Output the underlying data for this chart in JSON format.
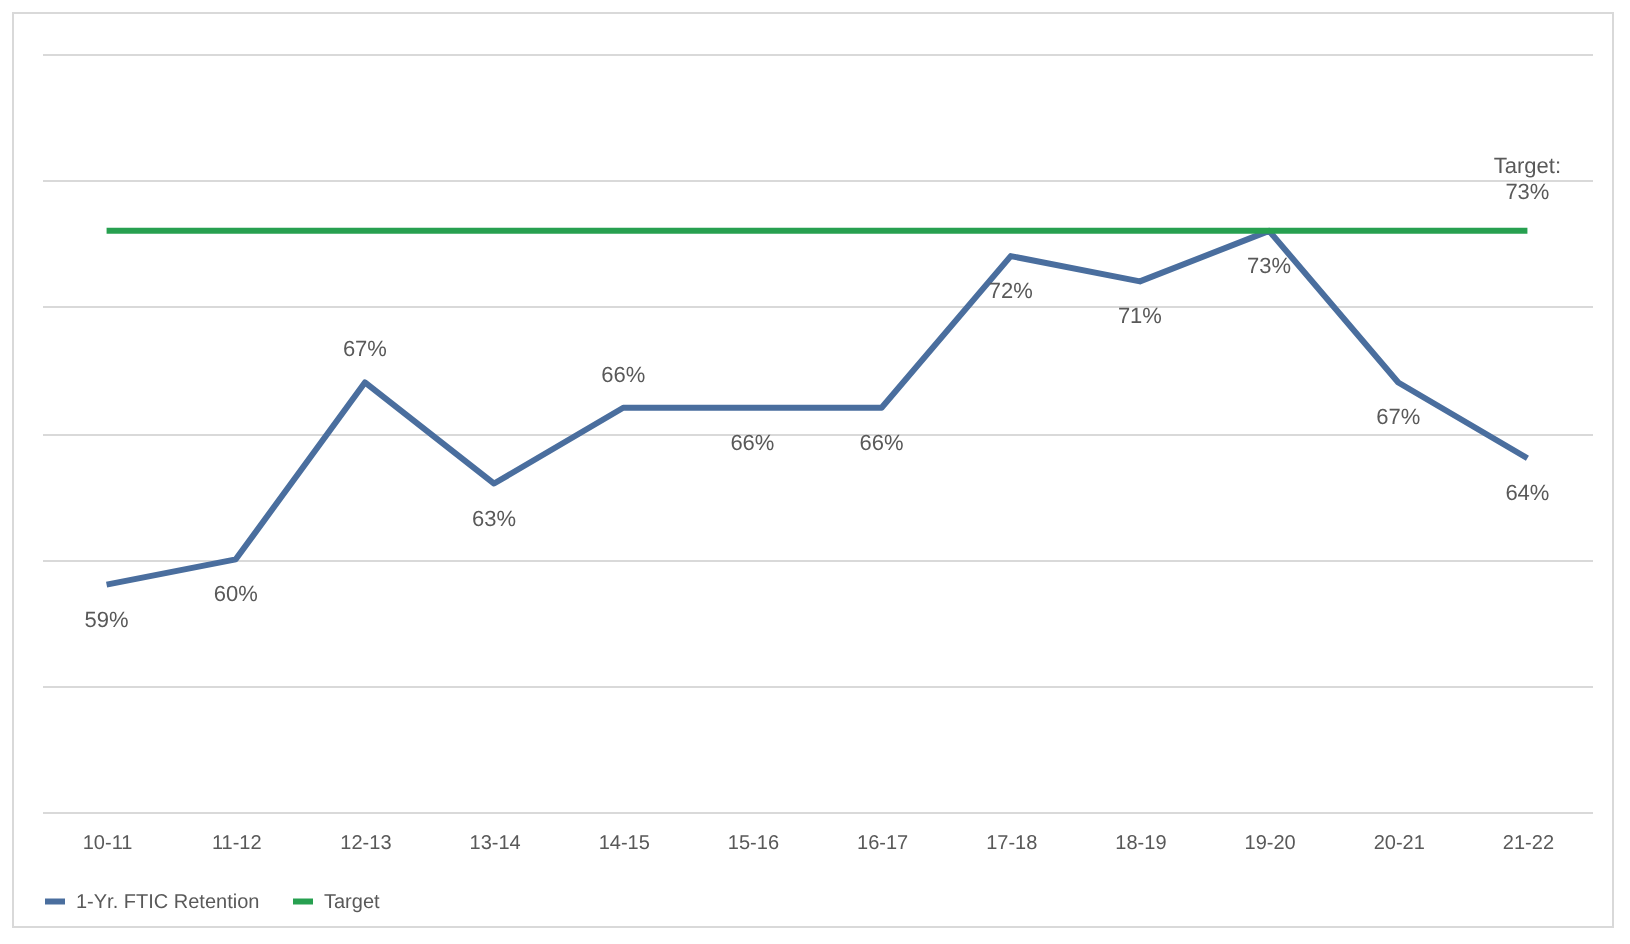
{
  "chart_data": {
    "type": "line",
    "categories": [
      "10-11",
      "11-12",
      "12-13",
      "13-14",
      "14-15",
      "15-16",
      "16-17",
      "17-18",
      "18-19",
      "19-20",
      "20-21",
      "21-22"
    ],
    "series": [
      {
        "name": "1-Yr. FTIC Retention",
        "color": "#4a6e9e",
        "values": [
          59,
          60,
          67,
          63,
          66,
          66,
          66,
          72,
          71,
          73,
          67,
          64
        ],
        "value_labels": [
          "59%",
          "60%",
          "67%",
          "63%",
          "66%",
          "66%",
          "66%",
          "72%",
          "71%",
          "73%",
          "67%",
          "64%"
        ]
      },
      {
        "name": "Target",
        "color": "#27a050",
        "values": [
          73,
          73,
          73,
          73,
          73,
          73,
          73,
          73,
          73,
          73,
          73,
          73
        ]
      }
    ],
    "ylim": [
      50,
      80
    ],
    "yticks": [
      50,
      55,
      60,
      65,
      70,
      75,
      80
    ],
    "tick_labels": "x",
    "grid": "y",
    "legend": "bottom",
    "line_style": "solid",
    "marker": "none",
    "annotations": [
      {
        "text": "Target: 73%",
        "x": "21-22",
        "y": 73
      }
    ]
  }
}
